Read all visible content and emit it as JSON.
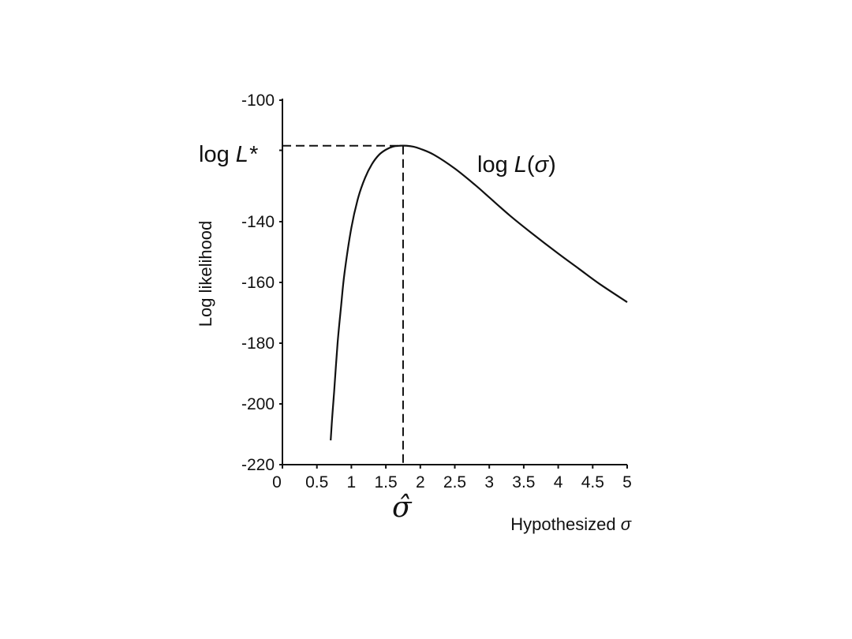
{
  "chart_data": {
    "type": "line",
    "xlabel": "Hypothesized ",
    "xlabel_symbol": "σ",
    "ylabel": "Log likelihood",
    "xlim": [
      0,
      5
    ],
    "ylim": [
      -220,
      -100
    ],
    "x_ticks": [
      0,
      0.5,
      1,
      1.5,
      2,
      2.5,
      3,
      3.5,
      4,
      4.5,
      5
    ],
    "x_tick_labels": [
      "0",
      "0.5",
      "1",
      "1.5",
      "2",
      "2.5",
      "3",
      "3.5",
      "4",
      "4.5",
      "5"
    ],
    "y_ticks": [
      -220,
      -200,
      -180,
      -160,
      -140,
      -100
    ],
    "y_tick_labels": [
      "-220",
      "-200",
      "-180",
      "-160",
      "-140",
      "-100"
    ],
    "grid": false,
    "series": [
      {
        "name": "log L(σ)",
        "x": [
          0.7,
          0.72,
          0.75,
          0.8,
          0.85,
          0.9,
          1.0,
          1.1,
          1.2,
          1.3,
          1.4,
          1.5,
          1.6,
          1.7,
          1.8,
          1.9,
          2.0,
          2.2,
          2.5,
          2.8,
          3.0,
          3.3,
          3.6,
          4.0,
          4.3,
          4.6,
          5.0
        ],
        "y": [
          -212,
          -205,
          -196,
          -180,
          -168,
          -157,
          -142,
          -132,
          -125.5,
          -121,
          -118,
          -116.3,
          -115.3,
          -115.0,
          -115.0,
          -115.3,
          -116,
          -118,
          -122.5,
          -128,
          -132,
          -138,
          -143.5,
          -150.5,
          -155.5,
          -160.5,
          -166.5
        ]
      }
    ],
    "peak": {
      "x": 1.75,
      "y": -115
    },
    "annotations": {
      "peak_y_label_prefix": "log ",
      "peak_y_label_symbol": "L*",
      "curve_label_prefix": "log ",
      "curve_label_L": "L",
      "curve_label_open": "(",
      "curve_label_sigma": "σ",
      "curve_label_close": ")",
      "peak_x_label": "σ̂"
    },
    "colors": {
      "curve": "#111111",
      "axis": "#111111",
      "guide": "#111111"
    }
  }
}
